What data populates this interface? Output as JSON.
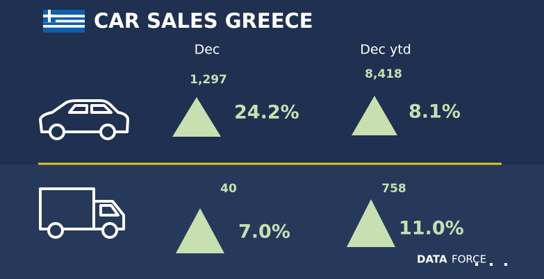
{
  "header": {
    "title": "CAR SALES GREECE"
  },
  "columns": [
    "Dec",
    "Dec ytd"
  ],
  "rows": [
    {
      "cells": [
        {
          "count": "1,297",
          "change": "24.2%"
        },
        {
          "count": "8,418",
          "change": "8.1%"
        }
      ]
    },
    {
      "cells": [
        {
          "count": "40",
          "change": "7.0%"
        },
        {
          "count": "758",
          "change": "11.0%"
        }
      ]
    }
  ],
  "brand": {
    "bold": "DATA",
    "light": "FORCE"
  }
}
